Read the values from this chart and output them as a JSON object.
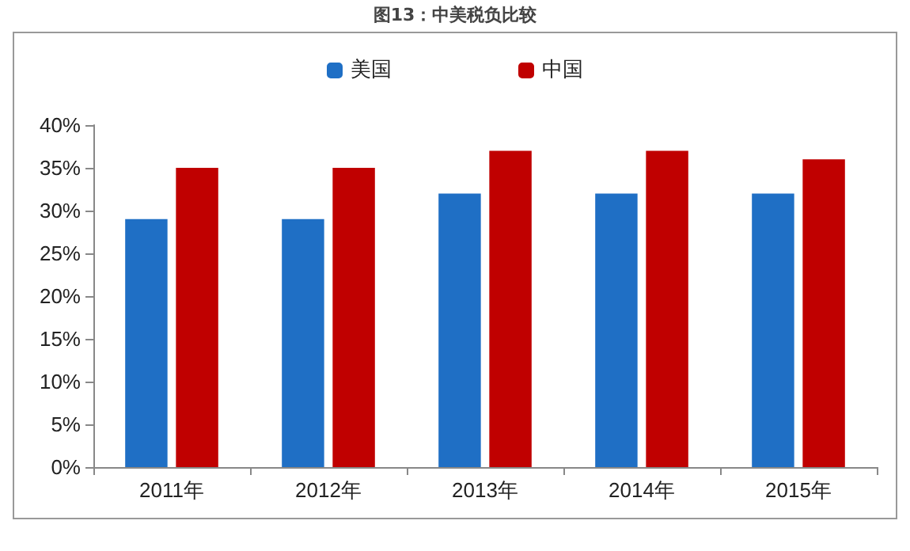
{
  "chart_data": {
    "type": "bar",
    "title": "图13：中美税负比较",
    "categories": [
      "2011年",
      "2012年",
      "2013年",
      "2014年",
      "2015年"
    ],
    "series": [
      {
        "name": "美国",
        "color": "#1f6fc5",
        "values": [
          29,
          29,
          32,
          32,
          32
        ]
      },
      {
        "name": "中国",
        "color": "#c00000",
        "values": [
          35,
          35,
          37,
          37,
          36
        ]
      }
    ],
    "ylim": [
      0,
      40
    ],
    "yticks": [
      {
        "value": 0,
        "label": "0%"
      },
      {
        "value": 5,
        "label": "5%"
      },
      {
        "value": 10,
        "label": "10%"
      },
      {
        "value": 15,
        "label": "15%"
      },
      {
        "value": 20,
        "label": "20%"
      },
      {
        "value": 25,
        "label": "25%"
      },
      {
        "value": 30,
        "label": "30%"
      },
      {
        "value": 35,
        "label": "35%"
      },
      {
        "value": 40,
        "label": "40%"
      }
    ],
    "grid": false,
    "legend": "top"
  }
}
